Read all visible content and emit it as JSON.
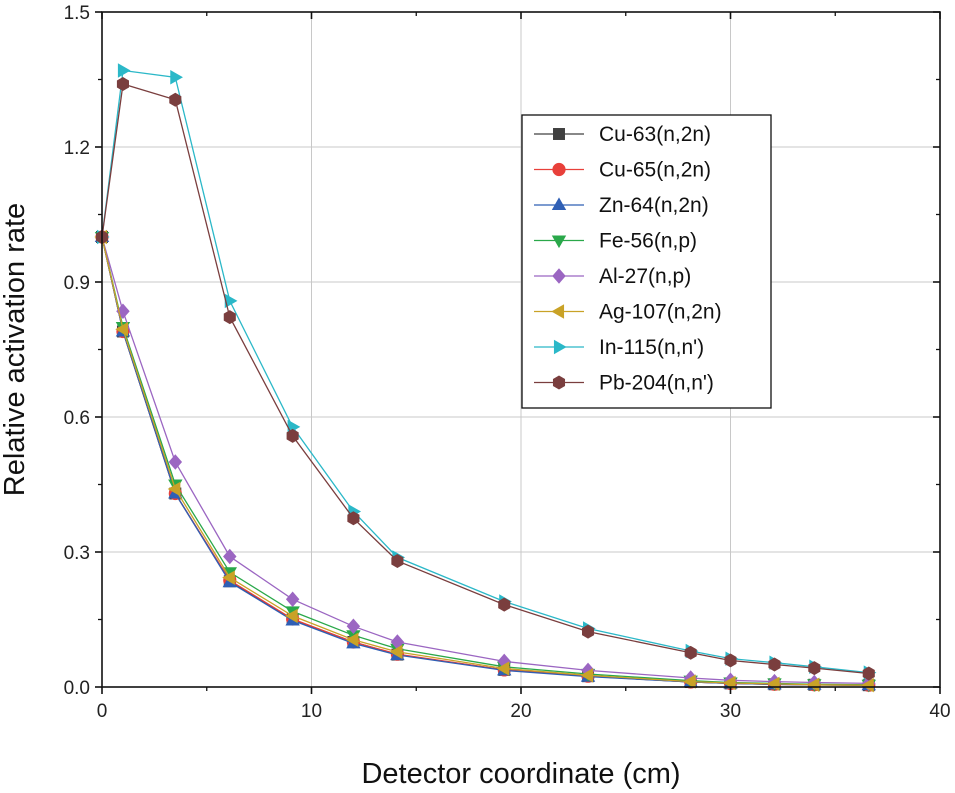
{
  "chart_data": {
    "type": "line",
    "title": "",
    "xlabel": "Detector coordinate (cm)",
    "ylabel": "Relative activation rate",
    "xlim": [
      0,
      40
    ],
    "ylim": [
      0,
      1.5
    ],
    "xticks": [
      0,
      10,
      20,
      30,
      40
    ],
    "xtick_labels": [
      "0",
      "10",
      "20",
      "30",
      "40"
    ],
    "yticks": [
      0.0,
      0.3,
      0.6,
      0.9,
      1.2,
      1.5
    ],
    "ytick_labels": [
      "0.0",
      "0.3",
      "0.6",
      "0.9",
      "1.2",
      "1.5"
    ],
    "grid": true,
    "legend_position": "right-center",
    "x": [
      0,
      1,
      3.5,
      6.1,
      9.1,
      12,
      14.1,
      19.2,
      23.2,
      28.1,
      30,
      32.1,
      34,
      36.6
    ],
    "series": [
      {
        "name": "Cu-63(n,2n)",
        "color": "#404040",
        "marker": "square",
        "values": [
          1.0,
          0.79,
          0.43,
          0.235,
          0.15,
          0.1,
          0.072,
          0.038,
          0.024,
          0.011,
          0.008,
          0.006,
          0.005,
          0.004
        ]
      },
      {
        "name": "Cu-65(n,2n)",
        "color": "#e8403a",
        "marker": "circle",
        "values": [
          1.0,
          0.79,
          0.43,
          0.237,
          0.151,
          0.1,
          0.073,
          0.038,
          0.024,
          0.011,
          0.008,
          0.006,
          0.005,
          0.004
        ]
      },
      {
        "name": "Zn-64(n,2n)",
        "color": "#2f5fb5",
        "marker": "triangle-up",
        "values": [
          1.0,
          0.79,
          0.43,
          0.233,
          0.148,
          0.097,
          0.071,
          0.037,
          0.023,
          0.011,
          0.008,
          0.006,
          0.005,
          0.004
        ]
      },
      {
        "name": "Fe-56(n,p)",
        "color": "#2aa84a",
        "marker": "triangle-down",
        "values": [
          1.0,
          0.8,
          0.45,
          0.255,
          0.168,
          0.115,
          0.085,
          0.045,
          0.029,
          0.014,
          0.01,
          0.008,
          0.006,
          0.005
        ]
      },
      {
        "name": "Al-27(n,p)",
        "color": "#9b66c2",
        "marker": "diamond",
        "values": [
          1.0,
          0.835,
          0.5,
          0.29,
          0.195,
          0.135,
          0.1,
          0.057,
          0.037,
          0.02,
          0.015,
          0.012,
          0.01,
          0.008
        ]
      },
      {
        "name": "Ag-107(n,2n)",
        "color": "#c9a227",
        "marker": "triangle-left",
        "values": [
          1.0,
          0.795,
          0.44,
          0.243,
          0.158,
          0.105,
          0.078,
          0.041,
          0.026,
          0.012,
          0.009,
          0.007,
          0.005,
          0.004
        ]
      },
      {
        "name": "In-115(n,n')",
        "color": "#2bb8c8",
        "marker": "triangle-right",
        "values": [
          1.0,
          1.37,
          1.355,
          0.858,
          0.578,
          0.39,
          0.288,
          0.19,
          0.13,
          0.08,
          0.063,
          0.054,
          0.045,
          0.032
        ]
      },
      {
        "name": "Pb-204(n,n')",
        "color": "#7a3e3e",
        "marker": "hexagon",
        "values": [
          1.0,
          1.34,
          1.305,
          0.822,
          0.558,
          0.375,
          0.28,
          0.183,
          0.123,
          0.076,
          0.059,
          0.05,
          0.042,
          0.03
        ]
      }
    ]
  }
}
